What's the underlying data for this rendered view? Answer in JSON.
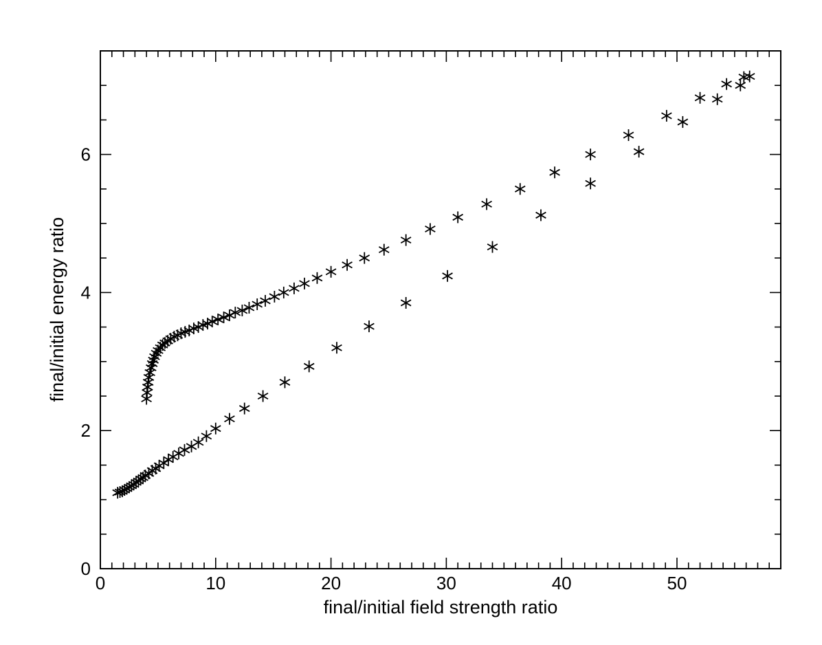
{
  "chart_data": {
    "type": "scatter",
    "title": "",
    "xlabel": "final/initial field strength ratio",
    "ylabel": "final/initial energy ratio",
    "xlim": [
      0,
      59
    ],
    "ylim": [
      0,
      7.5
    ],
    "x_ticks": [
      {
        "value": 0,
        "label": "0"
      },
      {
        "value": 10,
        "label": "10"
      },
      {
        "value": 20,
        "label": "20"
      },
      {
        "value": 30,
        "label": "30"
      },
      {
        "value": 40,
        "label": "40"
      },
      {
        "value": 50,
        "label": "50"
      }
    ],
    "y_ticks": [
      {
        "value": 0,
        "label": "0"
      },
      {
        "value": 2,
        "label": "2"
      },
      {
        "value": 4,
        "label": "4"
      },
      {
        "value": 6,
        "label": "6"
      }
    ],
    "x_minor_step": 1,
    "y_minor_step": 0.5,
    "grid": false,
    "marker": "asterisk",
    "series": [
      {
        "points": [
          [
            1.5,
            1.1
          ],
          [
            1.7,
            1.11
          ],
          [
            1.9,
            1.12
          ],
          [
            2.1,
            1.14
          ],
          [
            2.3,
            1.16
          ],
          [
            2.5,
            1.18
          ],
          [
            2.7,
            1.2
          ],
          [
            2.9,
            1.22
          ],
          [
            3.1,
            1.25
          ],
          [
            3.3,
            1.27
          ],
          [
            3.5,
            1.3
          ],
          [
            3.7,
            1.32
          ],
          [
            3.9,
            1.35
          ],
          [
            4.2,
            1.38
          ],
          [
            4.5,
            1.42
          ],
          [
            4.8,
            1.45
          ],
          [
            5.1,
            1.49
          ],
          [
            5.5,
            1.53
          ],
          [
            5.9,
            1.58
          ],
          [
            6.3,
            1.62
          ],
          [
            6.8,
            1.67
          ],
          [
            7.3,
            1.72
          ],
          [
            7.9,
            1.77
          ],
          [
            8.5,
            1.83
          ],
          [
            9.2,
            1.92
          ],
          [
            10.0,
            2.03
          ],
          [
            11.2,
            2.17
          ],
          [
            12.5,
            2.32
          ],
          [
            14.1,
            2.5
          ],
          [
            16.0,
            2.7
          ],
          [
            18.1,
            2.93
          ],
          [
            20.5,
            3.2
          ],
          [
            23.3,
            3.51
          ],
          [
            26.5,
            3.85
          ],
          [
            30.1,
            4.24
          ],
          [
            34.0,
            4.66
          ],
          [
            38.2,
            5.12
          ],
          [
            42.5,
            5.58
          ],
          [
            46.7,
            6.04
          ],
          [
            50.5,
            6.47
          ],
          [
            53.5,
            6.8
          ],
          [
            55.5,
            7.0
          ],
          [
            56.3,
            7.13
          ]
        ]
      },
      {
        "points": [
          [
            4.0,
            2.46
          ],
          [
            4.05,
            2.55
          ],
          [
            4.1,
            2.63
          ],
          [
            4.15,
            2.7
          ],
          [
            4.2,
            2.77
          ],
          [
            4.3,
            2.84
          ],
          [
            4.4,
            2.91
          ],
          [
            4.5,
            2.97
          ],
          [
            4.6,
            3.02
          ],
          [
            4.7,
            3.07
          ],
          [
            4.85,
            3.12
          ],
          [
            5.0,
            3.16
          ],
          [
            5.2,
            3.2
          ],
          [
            5.4,
            3.24
          ],
          [
            5.6,
            3.27
          ],
          [
            5.85,
            3.3
          ],
          [
            6.1,
            3.33
          ],
          [
            6.4,
            3.36
          ],
          [
            6.7,
            3.38
          ],
          [
            7.0,
            3.41
          ],
          [
            7.35,
            3.43
          ],
          [
            7.7,
            3.45
          ],
          [
            8.1,
            3.48
          ],
          [
            8.5,
            3.5
          ],
          [
            8.9,
            3.53
          ],
          [
            9.3,
            3.55
          ],
          [
            9.7,
            3.58
          ],
          [
            10.2,
            3.61
          ],
          [
            10.7,
            3.64
          ],
          [
            11.2,
            3.67
          ],
          [
            11.7,
            3.71
          ],
          [
            12.3,
            3.74
          ],
          [
            12.9,
            3.78
          ],
          [
            13.6,
            3.83
          ],
          [
            14.3,
            3.88
          ],
          [
            15.1,
            3.94
          ],
          [
            15.9,
            4.0
          ],
          [
            16.8,
            4.06
          ],
          [
            17.7,
            4.13
          ],
          [
            18.8,
            4.21
          ],
          [
            20.0,
            4.3
          ],
          [
            21.4,
            4.4
          ],
          [
            22.9,
            4.5
          ],
          [
            24.6,
            4.62
          ],
          [
            26.5,
            4.76
          ],
          [
            28.6,
            4.92
          ],
          [
            31.0,
            5.09
          ],
          [
            33.5,
            5.28
          ],
          [
            36.4,
            5.5
          ],
          [
            39.4,
            5.74
          ],
          [
            42.5,
            6.0
          ],
          [
            45.8,
            6.28
          ],
          [
            49.1,
            6.56
          ],
          [
            52.0,
            6.82
          ],
          [
            54.3,
            7.02
          ],
          [
            55.8,
            7.12
          ]
        ]
      }
    ]
  }
}
